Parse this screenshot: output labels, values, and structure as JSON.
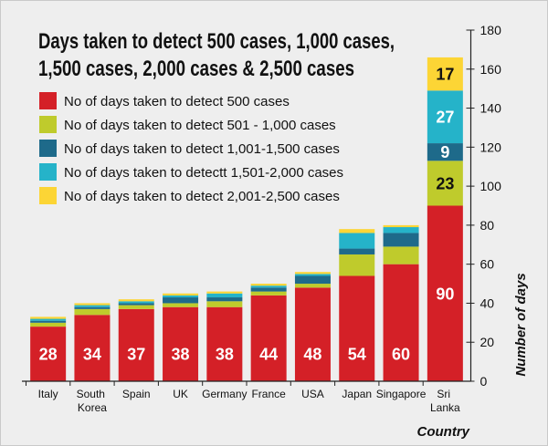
{
  "chart_data": {
    "type": "bar",
    "stacked": true,
    "title_lines": [
      "Days taken to detect 500 cases, 1,000 cases,",
      "1,500 cases, 2,000 cases & 2,500 cases"
    ],
    "xlabel": "Country",
    "ylabel": "Number of days",
    "ylim": [
      0,
      180
    ],
    "yticks": [
      0,
      20,
      40,
      60,
      80,
      100,
      120,
      140,
      160,
      180
    ],
    "y_axis_side": "right",
    "legend_position": "top-left",
    "grid": false,
    "categories": [
      "Italy",
      "South Korea",
      "Spain",
      "UK",
      "Germany",
      "France",
      "USA",
      "Japan",
      "Singapore",
      "Sri Lanka"
    ],
    "series": [
      {
        "name": "No of days taken to detect 500 cases",
        "color": "#d42027",
        "label_color": "#ffffff",
        "values": [
          28,
          34,
          37,
          38,
          38,
          44,
          48,
          54,
          60,
          90
        ],
        "labeled": [
          true,
          true,
          true,
          true,
          true,
          true,
          true,
          true,
          true,
          true
        ]
      },
      {
        "name": "No of days taken to detect 501 - 1,000 cases",
        "color": "#bfcb2c",
        "label_color": "#111111",
        "values": [
          2,
          3,
          2,
          2,
          3,
          2,
          2,
          11,
          9,
          23
        ],
        "labeled": [
          false,
          false,
          false,
          false,
          false,
          false,
          false,
          false,
          false,
          true
        ]
      },
      {
        "name": "No of days taken to detect 1,001-1,500 cases",
        "color": "#1e6a8a",
        "label_color": "#ffffff",
        "values": [
          1,
          1,
          1,
          3,
          2,
          2,
          4,
          3,
          7,
          9
        ],
        "labeled": [
          false,
          false,
          false,
          false,
          false,
          false,
          false,
          false,
          false,
          true
        ]
      },
      {
        "name": "No of days taken to detectt 1,501-2,000 cases",
        "color": "#25b3c9",
        "label_color": "#ffffff",
        "values": [
          1,
          1,
          1,
          1,
          2,
          1,
          1,
          8,
          3,
          27
        ],
        "labeled": [
          false,
          false,
          false,
          false,
          false,
          false,
          false,
          false,
          false,
          true
        ]
      },
      {
        "name": "No of days taken to detect 2,001-2,500 cases",
        "color": "#fcd535",
        "label_color": "#111111",
        "values": [
          1,
          1,
          1,
          1,
          1,
          1,
          1,
          2,
          1,
          17
        ],
        "labeled": [
          false,
          false,
          false,
          false,
          false,
          false,
          false,
          false,
          false,
          true
        ]
      }
    ]
  }
}
